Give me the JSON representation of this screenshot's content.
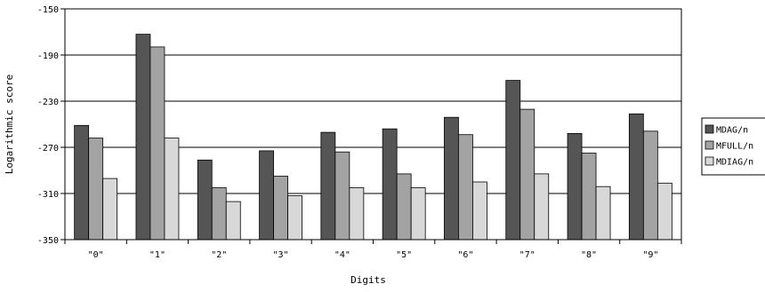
{
  "chart_data": {
    "type": "bar",
    "title": "",
    "xlabel": "Digits",
    "ylabel": "Logarithmic score",
    "categories": [
      "\"0\"",
      "\"1\"",
      "\"2\"",
      "\"3\"",
      "\"4\"",
      "\"5\"",
      "\"6\"",
      "\"7\"",
      "\"8\"",
      "\"9\""
    ],
    "series": [
      {
        "name": "MDAG/n",
        "color": "#555555",
        "values": [
          -251,
          -172,
          -281,
          -273,
          -257,
          -254,
          -244,
          -212,
          -258,
          -241
        ]
      },
      {
        "name": "MFULL/n",
        "color": "#a3a3a3",
        "values": [
          -262,
          -183,
          -305,
          -295,
          -274,
          -293,
          -259,
          -237,
          -275,
          -256
        ]
      },
      {
        "name": "MDIAG/n",
        "color": "#d8d8d8",
        "values": [
          -297,
          -262,
          -317,
          -312,
          -305,
          -305,
          -300,
          -293,
          -304,
          -301
        ]
      }
    ],
    "ylim": [
      -350,
      -150
    ],
    "yticks": [
      "-150",
      "-190",
      "-230",
      "-270",
      "-310",
      "-350"
    ],
    "ytick_values": [
      -150,
      -190,
      -230,
      -270,
      -310,
      -350
    ],
    "grid": true,
    "legend_position": "right"
  }
}
